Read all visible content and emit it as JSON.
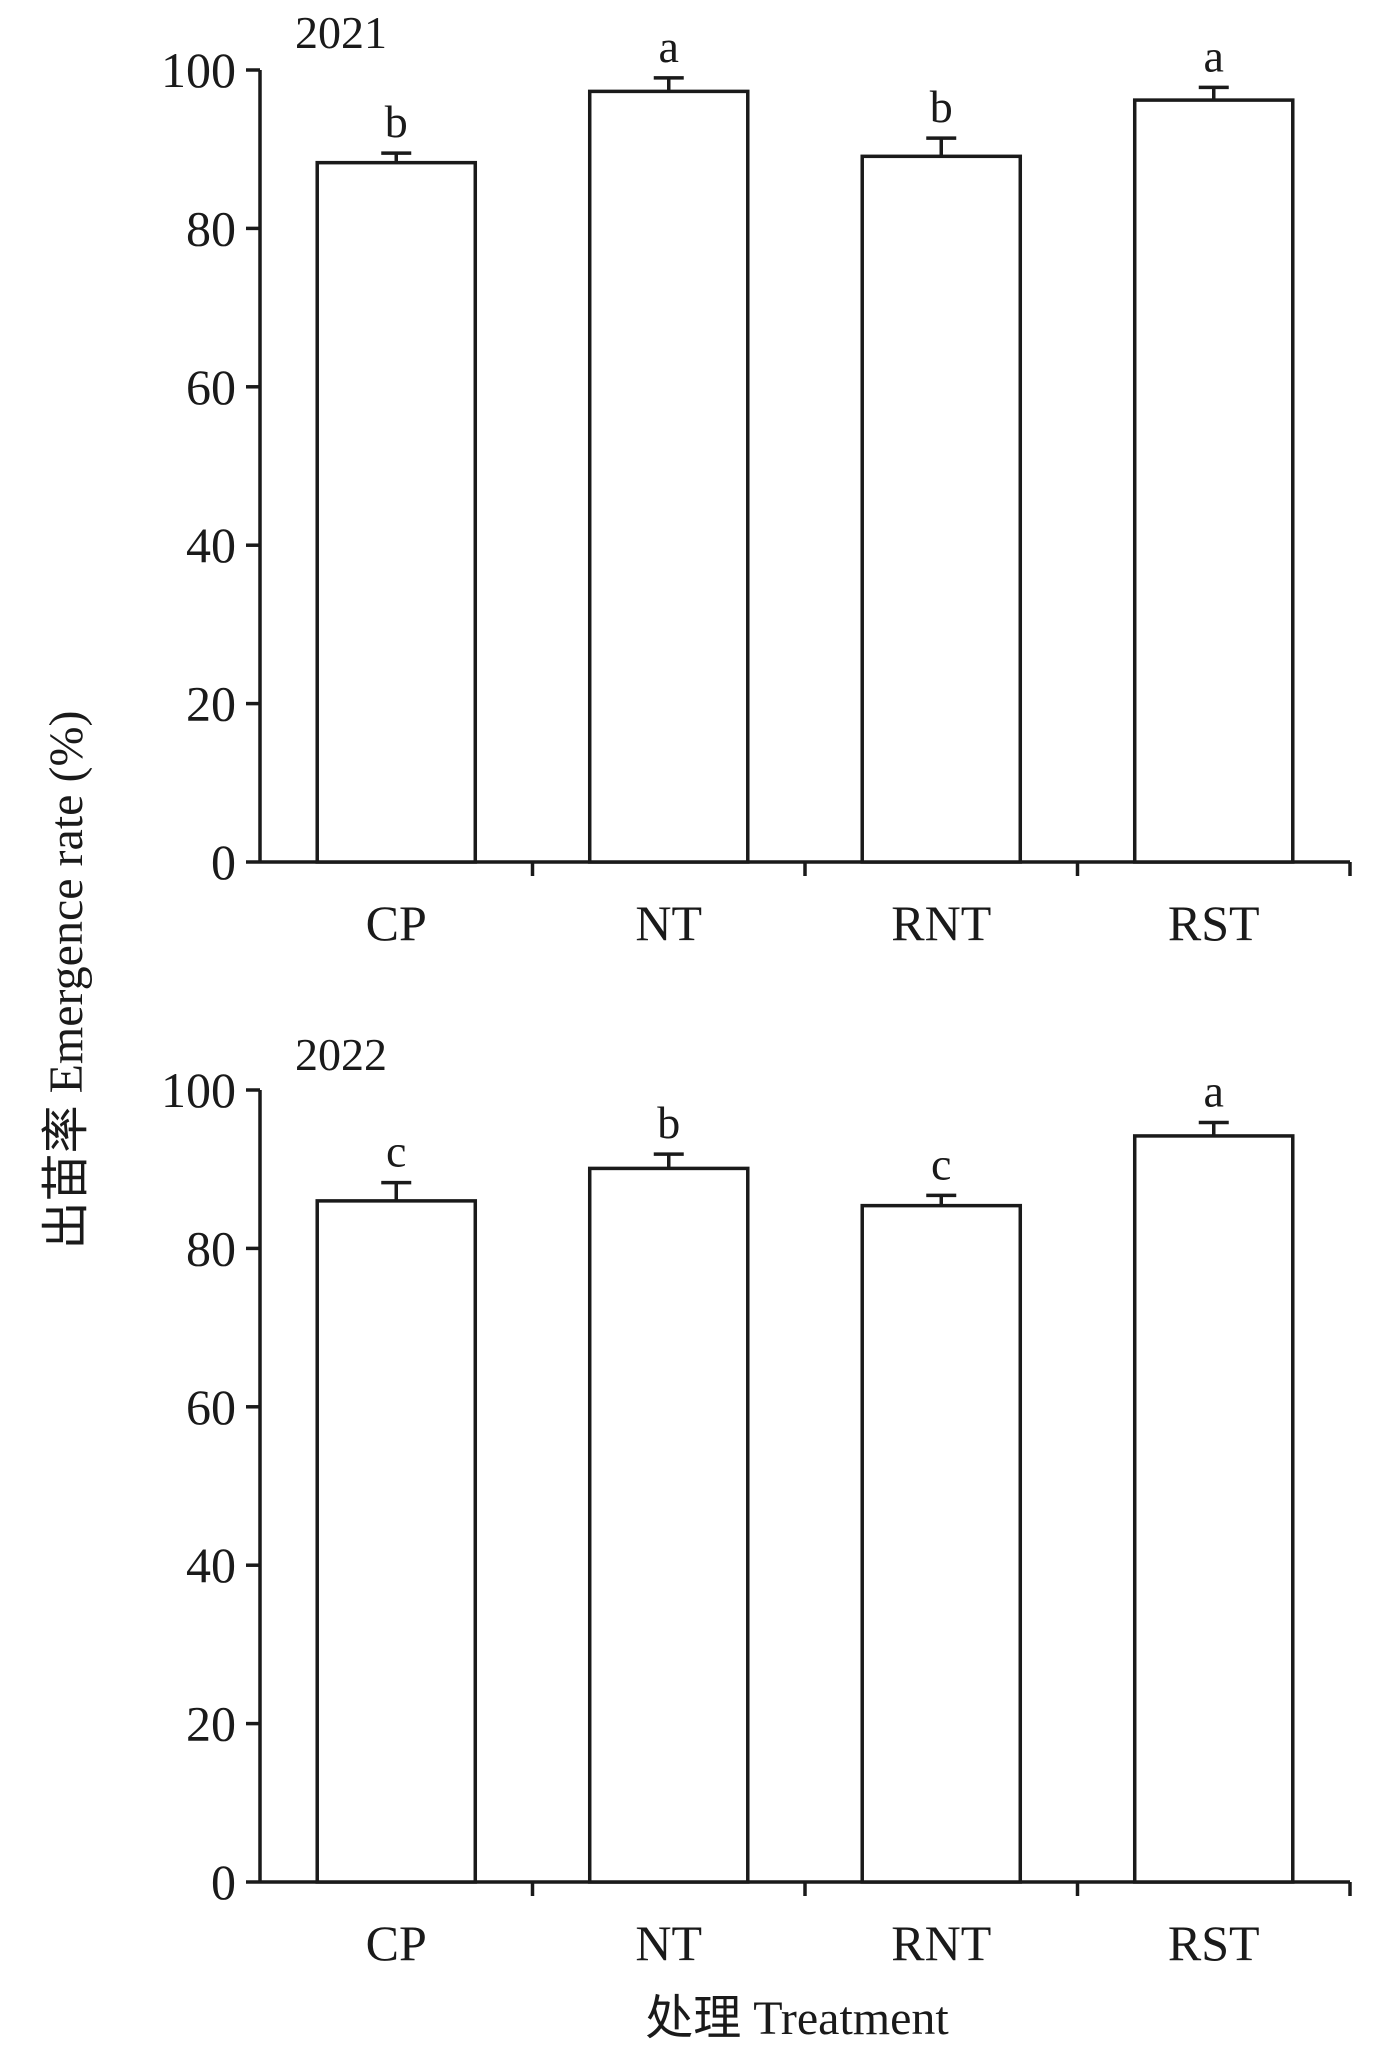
{
  "figure": {
    "ylabel": "出苗率 Emergence rate (%)",
    "xlabel": "处理 Treatment"
  },
  "chart_data": [
    {
      "type": "bar",
      "title": "2021",
      "categories": [
        "CP",
        "NT",
        "RNT",
        "RST"
      ],
      "values": [
        88.3,
        97.3,
        89.1,
        96.2
      ],
      "errors": [
        1.2,
        1.7,
        2.3,
        1.6
      ],
      "significance": [
        "b",
        "a",
        "b",
        "a"
      ],
      "ylim": [
        0,
        100
      ],
      "yticks": [
        0,
        20,
        40,
        60,
        80,
        100
      ],
      "grid": false,
      "bar_fill": "#ffffff",
      "bar_stroke": "#1a1a1a"
    },
    {
      "type": "bar",
      "title": "2022",
      "categories": [
        "CP",
        "NT",
        "RNT",
        "RST"
      ],
      "values": [
        86.0,
        90.1,
        85.4,
        94.2
      ],
      "errors": [
        2.3,
        1.8,
        1.3,
        1.7
      ],
      "significance": [
        "c",
        "b",
        "c",
        "a"
      ],
      "ylim": [
        0,
        100
      ],
      "yticks": [
        0,
        20,
        40,
        60,
        80,
        100
      ],
      "grid": false,
      "bar_fill": "#ffffff",
      "bar_stroke": "#1a1a1a"
    }
  ]
}
